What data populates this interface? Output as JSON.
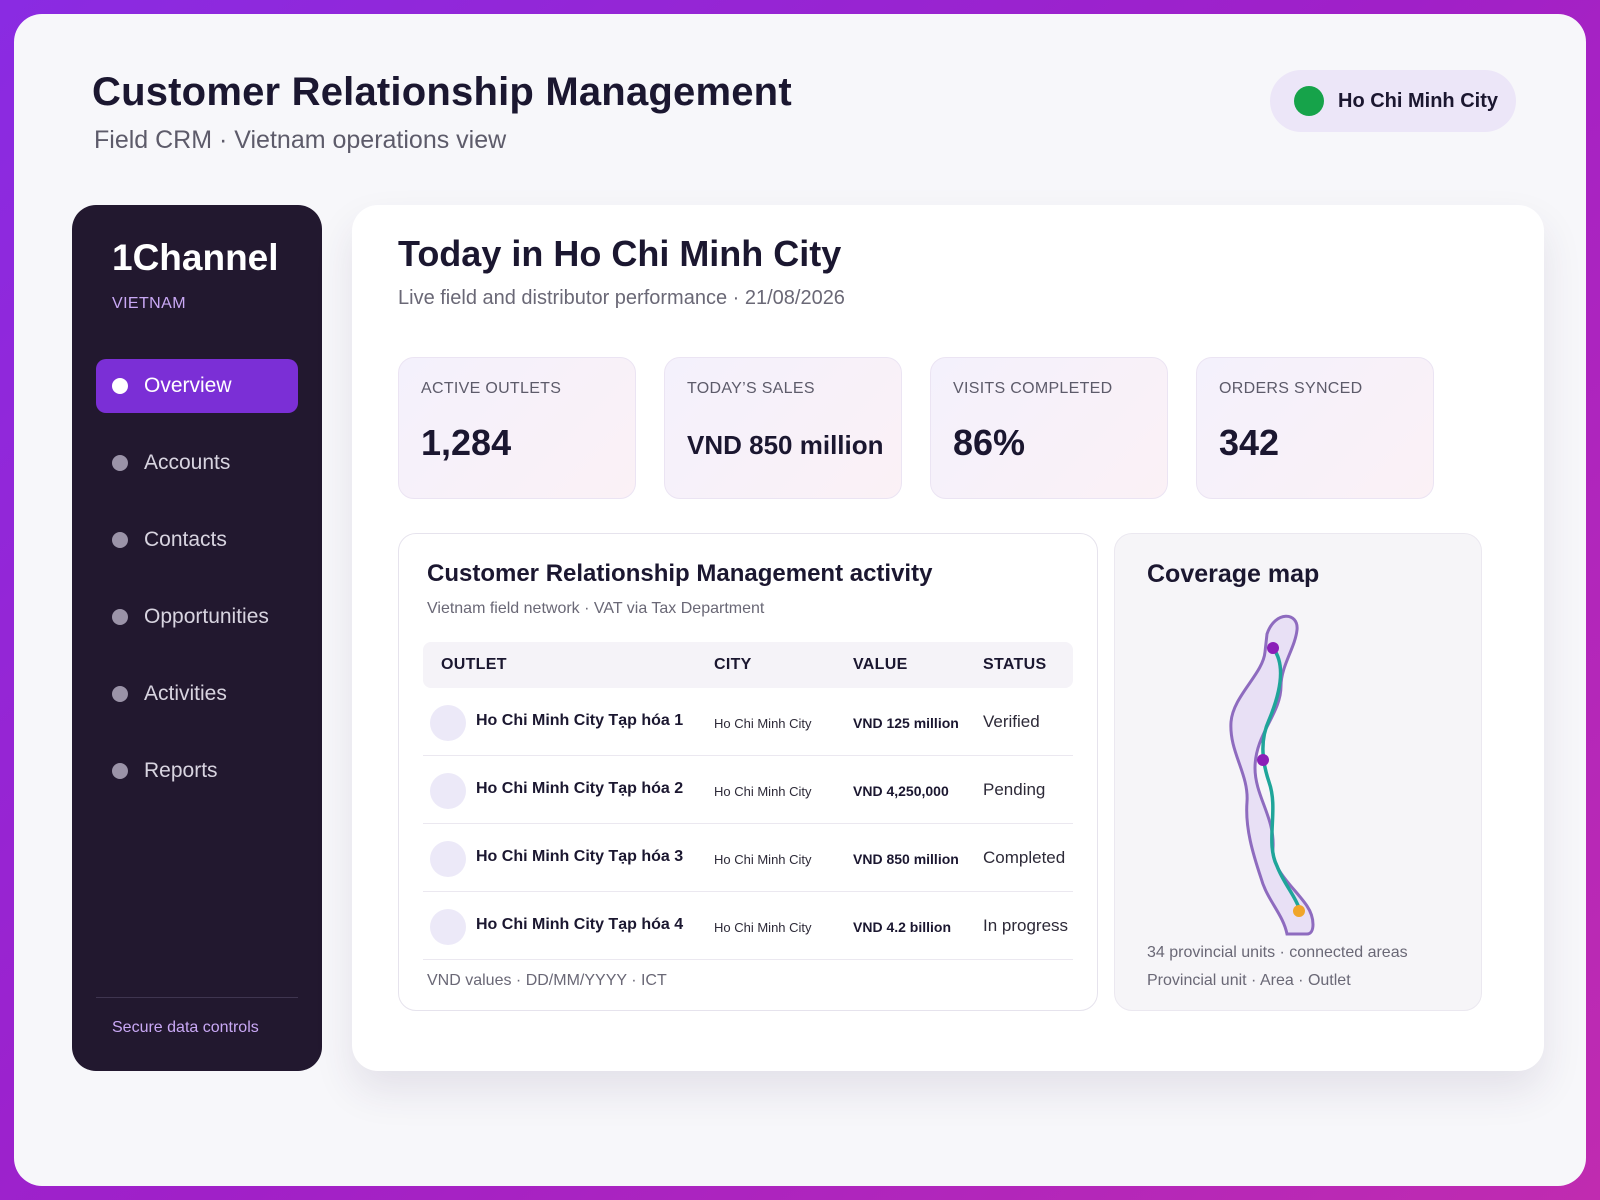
{
  "header": {
    "title": "Customer Relationship Management",
    "subtitle": "Field CRM · Vietnam operations view",
    "city_pill": "Ho Chi Minh City"
  },
  "sidebar": {
    "brand": "1Channel",
    "region": "VIETNAM",
    "items": [
      {
        "label": "Overview",
        "active": true
      },
      {
        "label": "Accounts",
        "active": false
      },
      {
        "label": "Contacts",
        "active": false
      },
      {
        "label": "Opportunities",
        "active": false
      },
      {
        "label": "Activities",
        "active": false
      },
      {
        "label": "Reports",
        "active": false
      }
    ],
    "footer": "Secure data controls"
  },
  "main": {
    "title": "Today in Ho Chi Minh City",
    "subtitle": "Live field and distributor performance · 21/08/2026",
    "kpis": [
      {
        "label": "ACTIVE OUTLETS",
        "value": "1,284"
      },
      {
        "label": "TODAY’S SALES",
        "value": "VND 850 million"
      },
      {
        "label": "VISITS COMPLETED",
        "value": "86%"
      },
      {
        "label": "ORDERS SYNCED",
        "value": "342"
      }
    ]
  },
  "activity": {
    "title": "Customer Relationship Management activity",
    "subtitle": "Vietnam field network · VAT via Tax Department",
    "columns": [
      "OUTLET",
      "CITY",
      "VALUE",
      "STATUS"
    ],
    "rows": [
      {
        "outlet": "Ho Chi Minh City Tạp hóa 1",
        "city": "Ho Chi Minh City",
        "value": "VND 125 million",
        "status": "Verified"
      },
      {
        "outlet": "Ho Chi Minh City Tạp hóa 2",
        "city": "Ho Chi Minh City",
        "value": "VND 4,250,000",
        "status": "Pending"
      },
      {
        "outlet": "Ho Chi Minh City Tạp hóa 3",
        "city": "Ho Chi Minh City",
        "value": "VND 850 million",
        "status": "Completed"
      },
      {
        "outlet": "Ho Chi Minh City Tạp hóa 4",
        "city": "Ho Chi Minh City",
        "value": "VND 4.2 billion",
        "status": "In progress"
      }
    ],
    "footer": "VND values · DD/MM/YYYY · ICT"
  },
  "coverage": {
    "title": "Coverage map",
    "caption": "34 provincial units · connected areas",
    "legend": "Provincial unit · Area · Outlet",
    "colors": {
      "outline": "#8e6bbf",
      "fill": "#e8e0f5",
      "route": "#1fa59a",
      "node": "#8b1fb8",
      "outlet": "#f0a52a"
    }
  },
  "colors": {
    "accent": "#7b2fd6",
    "sidebar_bg": "#22182f",
    "status_online": "#16a34a"
  }
}
